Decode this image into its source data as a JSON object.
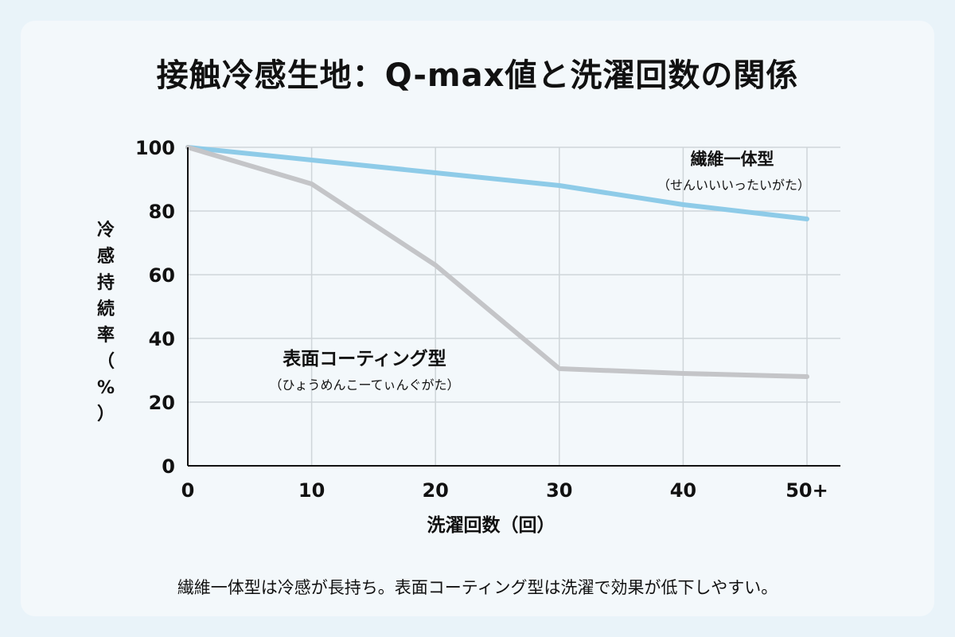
{
  "title": "接触冷感生地：Q-max値と洗濯回数の関係",
  "caption": "繊維一体型は冷感が長持ち。表面コーティング型は洗濯で効果が低下しやすい。",
  "colors": {
    "integrated": "#8ecbe8",
    "coated": "#c4c5c8",
    "grid": "#cfd5d9",
    "axis": "#111111"
  },
  "chart_data": {
    "type": "line",
    "title": "接触冷感生地：Q-max値と洗濯回数の関係",
    "xlabel": "洗濯回数（回）",
    "ylabel": "冷感持続率（%）",
    "categories": [
      "0",
      "10",
      "20",
      "30",
      "40",
      "50+"
    ],
    "x": [
      0,
      10,
      20,
      30,
      40,
      50
    ],
    "ylim": [
      0,
      100
    ],
    "yticks": [
      "0",
      "20",
      "40",
      "60",
      "80",
      "100"
    ],
    "grid": true,
    "series": [
      {
        "name": "繊維一体型",
        "sublabel": "（せんいいいったいがた）",
        "values": [
          100,
          96,
          92,
          88,
          82,
          77.5
        ]
      },
      {
        "name": "表面コーティング型",
        "sublabel": "（ひょうめんこーてぃんぐがた）",
        "values": [
          100,
          88.5,
          63,
          30.5,
          29,
          28
        ]
      }
    ]
  }
}
